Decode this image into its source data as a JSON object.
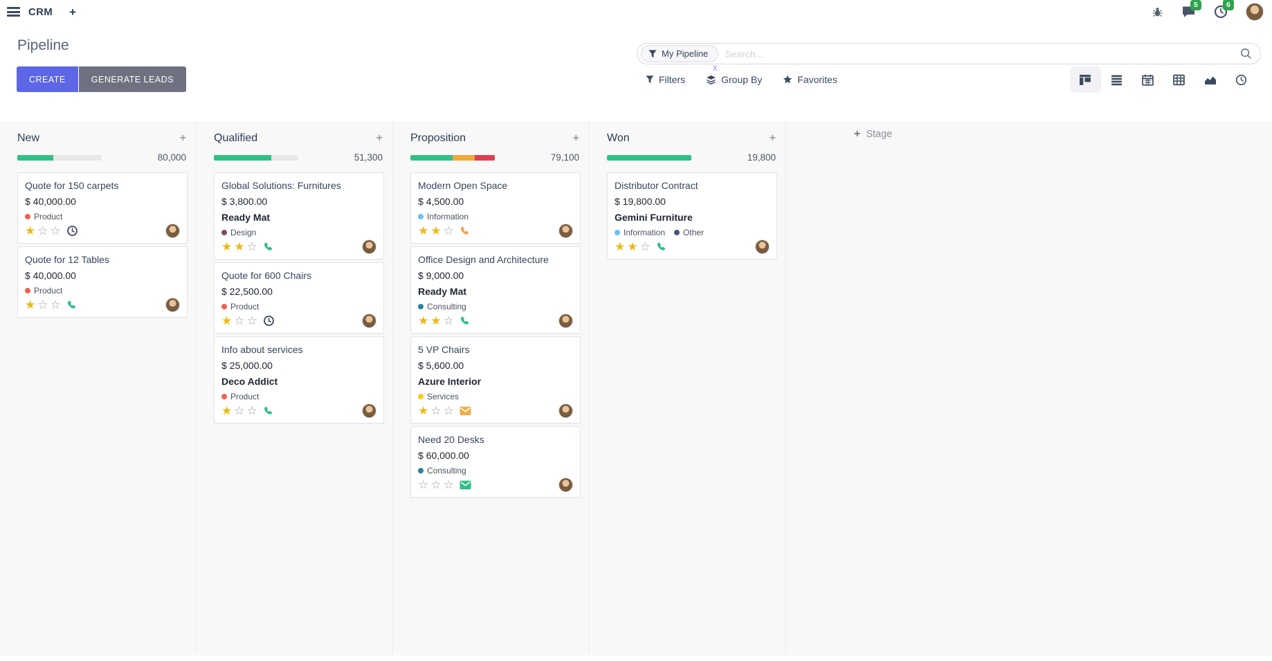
{
  "navbar": {
    "app_name": "CRM",
    "messages_badge": "5",
    "activities_badge": "6"
  },
  "control_panel": {
    "title": "Pipeline",
    "create_label": "CREATE",
    "generate_leads_label": "GENERATE LEADS",
    "search": {
      "facet_label": "My Pipeline",
      "facet_remove_label": "x",
      "placeholder": "Search..."
    },
    "filters_label": "Filters",
    "group_by_label": "Group By",
    "favorites_label": "Favorites"
  },
  "colors": {
    "accent": "#5d66e4",
    "muted_button": "#6f7180",
    "progress_green": "#31c188",
    "progress_orange": "#efa93b",
    "progress_red": "#db4150",
    "star": "#efb810",
    "badge_green": "#2ea34c",
    "activity_clock": "#3a4659",
    "activity_phone_green": "#2fbf87",
    "activity_phone_orange": "#f0a24c",
    "activity_mail_orange": "#eeaf4e",
    "activity_mail_green": "#2fbf87"
  },
  "kanban": {
    "add_stage_label": "Stage",
    "columns": [
      {
        "name": "New",
        "total": "80,000",
        "progress": [
          {
            "color": "#31c188",
            "pct": 43
          }
        ],
        "cards": [
          {
            "title": "Quote for 150 carpets",
            "amount": "$ 40,000.00",
            "company": null,
            "tags": [
              {
                "label": "Product",
                "color": "#f06050"
              }
            ],
            "stars": 1,
            "activity": {
              "icon": "clock",
              "color": "#3a4659"
            }
          },
          {
            "title": "Quote for 12 Tables",
            "amount": "$ 40,000.00",
            "company": null,
            "tags": [
              {
                "label": "Product",
                "color": "#f06050"
              }
            ],
            "stars": 1,
            "activity": {
              "icon": "phone",
              "color": "#2fbf87"
            }
          }
        ]
      },
      {
        "name": "Qualified",
        "total": "51,300",
        "progress": [
          {
            "color": "#31c188",
            "pct": 68
          }
        ],
        "cards": [
          {
            "title": "Global Solutions: Furnitures",
            "amount": "$ 3,800.00",
            "company": "Ready Mat",
            "tags": [
              {
                "label": "Design",
                "color": "#814968"
              }
            ],
            "stars": 2,
            "activity": {
              "icon": "phone",
              "color": "#2fbf87"
            }
          },
          {
            "title": "Quote for 600 Chairs",
            "amount": "$ 22,500.00",
            "company": null,
            "tags": [
              {
                "label": "Product",
                "color": "#f06050"
              }
            ],
            "stars": 1,
            "activity": {
              "icon": "clock",
              "color": "#3a4659"
            }
          },
          {
            "title": "Info about services",
            "amount": "$ 25,000.00",
            "company": "Deco Addict",
            "tags": [
              {
                "label": "Product",
                "color": "#f06050"
              }
            ],
            "stars": 1,
            "activity": {
              "icon": "phone",
              "color": "#2fbf87"
            }
          }
        ]
      },
      {
        "name": "Proposition",
        "total": "79,100",
        "progress": [
          {
            "color": "#31c188",
            "pct": 50
          },
          {
            "color": "#efa93b",
            "pct": 26
          },
          {
            "color": "#db4150",
            "pct": 24
          }
        ],
        "cards": [
          {
            "title": "Modern Open Space",
            "amount": "$ 4,500.00",
            "company": null,
            "tags": [
              {
                "label": "Information",
                "color": "#6cc1ed"
              }
            ],
            "stars": 2,
            "activity": {
              "icon": "phone",
              "color": "#f0a24c"
            }
          },
          {
            "title": "Office Design and Architecture",
            "amount": "$ 9,000.00",
            "company": "Ready Mat",
            "tags": [
              {
                "label": "Consulting",
                "color": "#2c8397"
              }
            ],
            "stars": 2,
            "activity": {
              "icon": "phone",
              "color": "#2fbf87"
            }
          },
          {
            "title": "5 VP Chairs",
            "amount": "$ 5,600.00",
            "company": "Azure Interior",
            "tags": [
              {
                "label": "Services",
                "color": "#f7cd1f"
              }
            ],
            "stars": 1,
            "activity": {
              "icon": "mail",
              "color": "#eeaf4e"
            }
          },
          {
            "title": "Need 20 Desks",
            "amount": "$ 60,000.00",
            "company": null,
            "tags": [
              {
                "label": "Consulting",
                "color": "#2c8397"
              }
            ],
            "stars": 0,
            "activity": {
              "icon": "mail",
              "color": "#2fbf87"
            }
          }
        ]
      },
      {
        "name": "Won",
        "total": "19,800",
        "progress": [
          {
            "color": "#31c188",
            "pct": 100
          }
        ],
        "cards": [
          {
            "title": "Distributor Contract",
            "amount": "$ 19,800.00",
            "company": "Gemini Furniture",
            "tags": [
              {
                "label": "Information",
                "color": "#6cc1ed"
              },
              {
                "label": "Other",
                "color": "#475577"
              }
            ],
            "stars": 2,
            "activity": {
              "icon": "phone",
              "color": "#2fbf87"
            }
          }
        ]
      }
    ]
  }
}
